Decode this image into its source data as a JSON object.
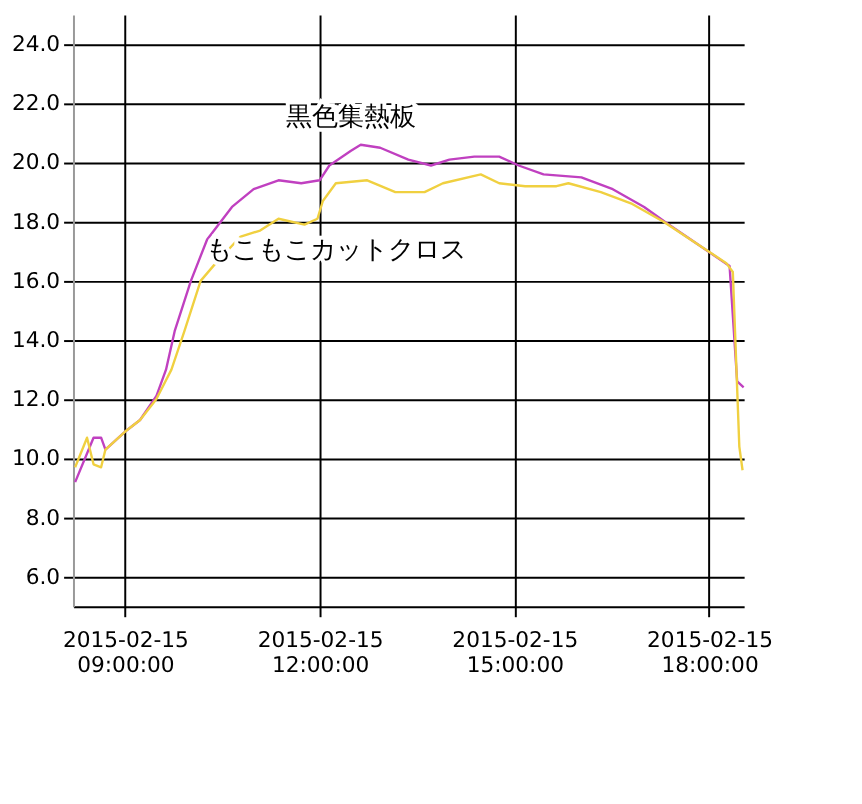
{
  "chart_data": {
    "type": "line",
    "xlim": [
      "2015-02-15T08:12",
      "2015-02-15T18:32"
    ],
    "xticks": [
      {
        "value": "2015-02-15T09:00",
        "label": "2015-02-15 09:00:00"
      },
      {
        "value": "2015-02-15T12:00",
        "label": "2015-02-15 12:00:00"
      },
      {
        "value": "2015-02-15T15:00",
        "label": "2015-02-15 15:00:00"
      },
      {
        "value": "2015-02-15T18:00",
        "label": "2015-02-15 18:00:00"
      }
    ],
    "ylim": [
      5,
      25
    ],
    "yticks": [
      {
        "value": 6,
        "label": "6.0"
      },
      {
        "value": 8,
        "label": "8.0"
      },
      {
        "value": 10,
        "label": "10.0"
      },
      {
        "value": 12,
        "label": "12.0"
      },
      {
        "value": 14,
        "label": "14.0"
      },
      {
        "value": 16,
        "label": "16.0"
      },
      {
        "value": 18,
        "label": "18.0"
      },
      {
        "value": 20,
        "label": "20.0"
      },
      {
        "value": 22,
        "label": "22.0"
      },
      {
        "value": 24,
        "label": "24.0"
      }
    ],
    "grid": true,
    "marker": "none",
    "line_style": "solid",
    "series": [
      {
        "name": "黒色集熱板",
        "color": "#c040c0",
        "x": [
          "2015-02-15T08:14",
          "2015-02-15T08:31",
          "2015-02-15T08:38",
          "2015-02-15T08:42",
          "2015-02-15T09:00",
          "2015-02-15T09:14",
          "2015-02-15T09:29",
          "2015-02-15T09:38",
          "2015-02-15T09:46",
          "2015-02-15T10:01",
          "2015-02-15T10:16",
          "2015-02-15T10:39",
          "2015-02-15T10:59",
          "2015-02-15T11:22",
          "2015-02-15T11:43",
          "2015-02-15T12:00",
          "2015-02-15T12:09",
          "2015-02-15T12:29",
          "2015-02-15T12:38",
          "2015-02-15T12:56",
          "2015-02-15T13:22",
          "2015-02-15T13:43",
          "2015-02-15T14:00",
          "2015-02-15T14:23",
          "2015-02-15T14:46",
          "2015-02-15T15:04",
          "2015-02-15T15:27",
          "2015-02-15T16:02",
          "2015-02-15T16:31",
          "2015-02-15T17:00",
          "2015-02-15T17:23",
          "2015-02-15T17:59",
          "2015-02-15T18:19",
          "2015-02-15T18:26",
          "2015-02-15T18:32"
        ],
        "values": [
          9.2,
          10.7,
          10.7,
          10.3,
          10.9,
          11.3,
          12.1,
          13.0,
          14.3,
          16.0,
          17.4,
          18.5,
          19.1,
          19.4,
          19.3,
          19.4,
          19.9,
          20.4,
          20.6,
          20.5,
          20.1,
          19.9,
          20.1,
          20.2,
          20.2,
          19.9,
          19.6,
          19.5,
          19.1,
          18.5,
          17.9,
          17.0,
          16.5,
          12.6,
          12.4
        ]
      },
      {
        "name": "もこもこカットクロス",
        "color": "#f0d040",
        "x": [
          "2015-02-15T08:14",
          "2015-02-15T08:25",
          "2015-02-15T08:31",
          "2015-02-15T08:38",
          "2015-02-15T08:42",
          "2015-02-15T09:00",
          "2015-02-15T09:14",
          "2015-02-15T09:29",
          "2015-02-15T09:43",
          "2015-02-15T09:55",
          "2015-02-15T10:10",
          "2015-02-15T10:24",
          "2015-02-15T10:47",
          "2015-02-15T11:05",
          "2015-02-15T11:22",
          "2015-02-15T11:46",
          "2015-02-15T11:58",
          "2015-02-15T12:03",
          "2015-02-15T12:15",
          "2015-02-15T12:44",
          "2015-02-15T13:10",
          "2015-02-15T13:37",
          "2015-02-15T13:54",
          "2015-02-15T14:29",
          "2015-02-15T14:46",
          "2015-02-15T15:10",
          "2015-02-15T15:39",
          "2015-02-15T15:50",
          "2015-02-15T16:20",
          "2015-02-15T16:49",
          "2015-02-15T17:18",
          "2015-02-15T17:47",
          "2015-02-15T18:16",
          "2015-02-15T18:22",
          "2015-02-15T18:28",
          "2015-02-15T18:31"
        ],
        "values": [
          9.7,
          10.7,
          9.8,
          9.7,
          10.3,
          10.9,
          11.3,
          12.0,
          13.0,
          14.3,
          16.0,
          16.6,
          17.5,
          17.7,
          18.1,
          17.9,
          18.1,
          18.7,
          19.3,
          19.4,
          19.0,
          19.0,
          19.3,
          19.6,
          19.3,
          19.2,
          19.2,
          19.3,
          19.0,
          18.6,
          18.0,
          17.3,
          16.6,
          16.3,
          10.4,
          9.6
        ]
      }
    ]
  }
}
